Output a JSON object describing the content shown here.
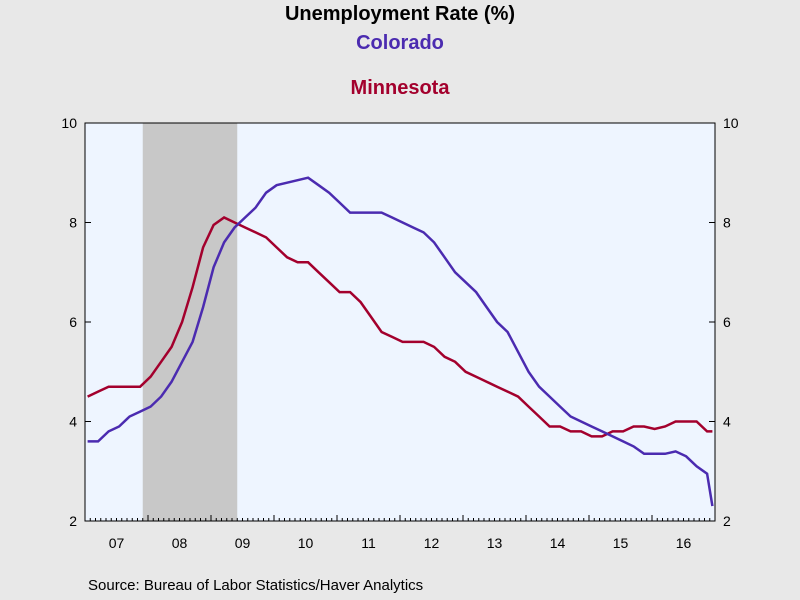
{
  "colors": {
    "series1": "#4b2bb0",
    "series2": "#a3002d",
    "plot_bg": "#eef5ff",
    "recession": "#c8c8c8",
    "page_bg": "#e8e8e8"
  },
  "source": "Source:  Bureau of Labor Statistics/Haver Analytics",
  "chart_data": {
    "type": "line",
    "title": "Unemployment Rate (%)",
    "xlabel": "",
    "ylabel": "",
    "x_tick_labels": [
      "07",
      "08",
      "09",
      "10",
      "11",
      "12",
      "13",
      "14",
      "15",
      "16"
    ],
    "y_ticks": [
      2,
      4,
      6,
      8,
      10
    ],
    "ylim": [
      2,
      10
    ],
    "xlim": [
      "2007-01",
      "2016-12"
    ],
    "grid": false,
    "dual_y_axis": true,
    "shaded_recession": {
      "start": "2007-12",
      "end": "2009-06"
    },
    "series": [
      {
        "name": "Colorado",
        "points": [
          [
            "2007-01",
            3.6
          ],
          [
            "2007-03",
            3.6
          ],
          [
            "2007-05",
            3.8
          ],
          [
            "2007-07",
            3.9
          ],
          [
            "2007-09",
            4.1
          ],
          [
            "2007-11",
            4.2
          ],
          [
            "2008-01",
            4.3
          ],
          [
            "2008-03",
            4.5
          ],
          [
            "2008-05",
            4.8
          ],
          [
            "2008-07",
            5.2
          ],
          [
            "2008-09",
            5.6
          ],
          [
            "2008-11",
            6.3
          ],
          [
            "2009-01",
            7.1
          ],
          [
            "2009-03",
            7.6
          ],
          [
            "2009-05",
            7.9
          ],
          [
            "2009-07",
            8.1
          ],
          [
            "2009-09",
            8.3
          ],
          [
            "2009-11",
            8.6
          ],
          [
            "2010-01",
            8.75
          ],
          [
            "2010-03",
            8.8
          ],
          [
            "2010-05",
            8.85
          ],
          [
            "2010-07",
            8.9
          ],
          [
            "2010-09",
            8.75
          ],
          [
            "2010-11",
            8.6
          ],
          [
            "2011-01",
            8.4
          ],
          [
            "2011-03",
            8.2
          ],
          [
            "2011-05",
            8.2
          ],
          [
            "2011-07",
            8.2
          ],
          [
            "2011-09",
            8.2
          ],
          [
            "2011-11",
            8.1
          ],
          [
            "2012-01",
            8.0
          ],
          [
            "2012-03",
            7.9
          ],
          [
            "2012-05",
            7.8
          ],
          [
            "2012-07",
            7.6
          ],
          [
            "2012-09",
            7.3
          ],
          [
            "2012-11",
            7.0
          ],
          [
            "2013-01",
            6.8
          ],
          [
            "2013-03",
            6.6
          ],
          [
            "2013-05",
            6.3
          ],
          [
            "2013-07",
            6.0
          ],
          [
            "2013-09",
            5.8
          ],
          [
            "2013-11",
            5.4
          ],
          [
            "2014-01",
            5.0
          ],
          [
            "2014-03",
            4.7
          ],
          [
            "2014-05",
            4.5
          ],
          [
            "2014-07",
            4.3
          ],
          [
            "2014-09",
            4.1
          ],
          [
            "2014-11",
            4.0
          ],
          [
            "2015-01",
            3.9
          ],
          [
            "2015-03",
            3.8
          ],
          [
            "2015-05",
            3.7
          ],
          [
            "2015-07",
            3.6
          ],
          [
            "2015-09",
            3.5
          ],
          [
            "2015-11",
            3.35
          ],
          [
            "2016-01",
            3.35
          ],
          [
            "2016-03",
            3.35
          ],
          [
            "2016-05",
            3.4
          ],
          [
            "2016-07",
            3.3
          ],
          [
            "2016-09",
            3.1
          ],
          [
            "2016-11",
            2.95
          ],
          [
            "2016-12",
            2.3
          ]
        ]
      },
      {
        "name": "Minnesota",
        "points": [
          [
            "2007-01",
            4.5
          ],
          [
            "2007-03",
            4.6
          ],
          [
            "2007-05",
            4.7
          ],
          [
            "2007-07",
            4.7
          ],
          [
            "2007-09",
            4.7
          ],
          [
            "2007-11",
            4.7
          ],
          [
            "2008-01",
            4.9
          ],
          [
            "2008-03",
            5.2
          ],
          [
            "2008-05",
            5.5
          ],
          [
            "2008-07",
            6.0
          ],
          [
            "2008-09",
            6.7
          ],
          [
            "2008-11",
            7.5
          ],
          [
            "2009-01",
            7.95
          ],
          [
            "2009-03",
            8.1
          ],
          [
            "2009-05",
            8.0
          ],
          [
            "2009-07",
            7.9
          ],
          [
            "2009-09",
            7.8
          ],
          [
            "2009-11",
            7.7
          ],
          [
            "2010-01",
            7.5
          ],
          [
            "2010-03",
            7.3
          ],
          [
            "2010-05",
            7.2
          ],
          [
            "2010-07",
            7.2
          ],
          [
            "2010-09",
            7.0
          ],
          [
            "2010-11",
            6.8
          ],
          [
            "2011-01",
            6.6
          ],
          [
            "2011-03",
            6.6
          ],
          [
            "2011-05",
            6.4
          ],
          [
            "2011-07",
            6.1
          ],
          [
            "2011-09",
            5.8
          ],
          [
            "2011-11",
            5.7
          ],
          [
            "2012-01",
            5.6
          ],
          [
            "2012-03",
            5.6
          ],
          [
            "2012-05",
            5.6
          ],
          [
            "2012-07",
            5.5
          ],
          [
            "2012-09",
            5.3
          ],
          [
            "2012-11",
            5.2
          ],
          [
            "2013-01",
            5.0
          ],
          [
            "2013-03",
            4.9
          ],
          [
            "2013-05",
            4.8
          ],
          [
            "2013-07",
            4.7
          ],
          [
            "2013-09",
            4.6
          ],
          [
            "2013-11",
            4.5
          ],
          [
            "2014-01",
            4.3
          ],
          [
            "2014-03",
            4.1
          ],
          [
            "2014-05",
            3.9
          ],
          [
            "2014-07",
            3.9
          ],
          [
            "2014-09",
            3.8
          ],
          [
            "2014-11",
            3.8
          ],
          [
            "2015-01",
            3.7
          ],
          [
            "2015-03",
            3.7
          ],
          [
            "2015-05",
            3.8
          ],
          [
            "2015-07",
            3.8
          ],
          [
            "2015-09",
            3.9
          ],
          [
            "2015-11",
            3.9
          ],
          [
            "2016-01",
            3.85
          ],
          [
            "2016-03",
            3.9
          ],
          [
            "2016-05",
            4.0
          ],
          [
            "2016-07",
            4.0
          ],
          [
            "2016-09",
            4.0
          ],
          [
            "2016-11",
            3.8
          ],
          [
            "2016-12",
            3.8
          ]
        ]
      }
    ]
  }
}
